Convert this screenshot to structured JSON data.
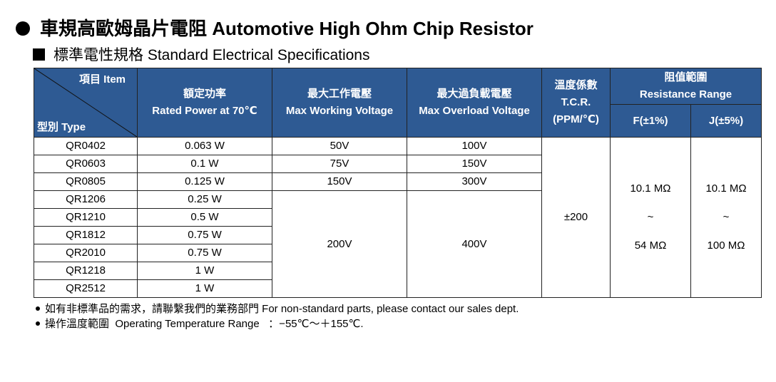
{
  "title": "車規高歐姆晶片電阻 Automotive High Ohm Chip Resistor",
  "subtitle": "標準電性規格 Standard Electrical Specifications",
  "header": {
    "item": "項目 Item",
    "type": "型別 Type",
    "power_zh": "額定功率",
    "power_en": "Rated Power at 70℃",
    "mwv_zh": "最大工作電壓",
    "mwv_en": "Max Working Voltage",
    "mov_zh": "最大過負載電壓",
    "mov_en": "Max Overload Voltage",
    "tcr_zh": "溫度係數",
    "tcr_en": "T.C.R.",
    "tcr_unit": "(PPM/℃)",
    "range_zh": "阻值範圍",
    "range_en": "Resistance Range",
    "f": "F(±1%)",
    "j": "J(±5%)"
  },
  "rows": [
    {
      "type": "QR0402",
      "power": "0.063 W"
    },
    {
      "type": "QR0603",
      "power": "0.1 W"
    },
    {
      "type": "QR0805",
      "power": "0.125 W"
    },
    {
      "type": "QR1206",
      "power": "0.25 W"
    },
    {
      "type": "QR1210",
      "power": "0.5 W"
    },
    {
      "type": "QR1812",
      "power": "0.75 W"
    },
    {
      "type": "QR2010",
      "power": "0.75 W"
    },
    {
      "type": "QR1218",
      "power": "1 W"
    },
    {
      "type": "QR2512",
      "power": "1 W"
    }
  ],
  "mwv": [
    "50V",
    "75V",
    "150V",
    "200V"
  ],
  "mov": [
    "100V",
    "150V",
    "300V",
    "400V"
  ],
  "tcr": "±200",
  "range_f": {
    "min": "10.1 MΩ",
    "sep": "~",
    "max": "54 MΩ"
  },
  "range_j": {
    "min": "10.1 MΩ",
    "sep": "~",
    "max": "100 MΩ"
  },
  "notes": [
    "如有非標準品的需求，請聯繫我們的業務部門 For non-standard parts, please contact our sales dept.",
    "操作溫度範圍  Operating Temperature Range   ：−55℃～＋155℃."
  ],
  "colors": {
    "header_bg": "#2e5a93"
  }
}
